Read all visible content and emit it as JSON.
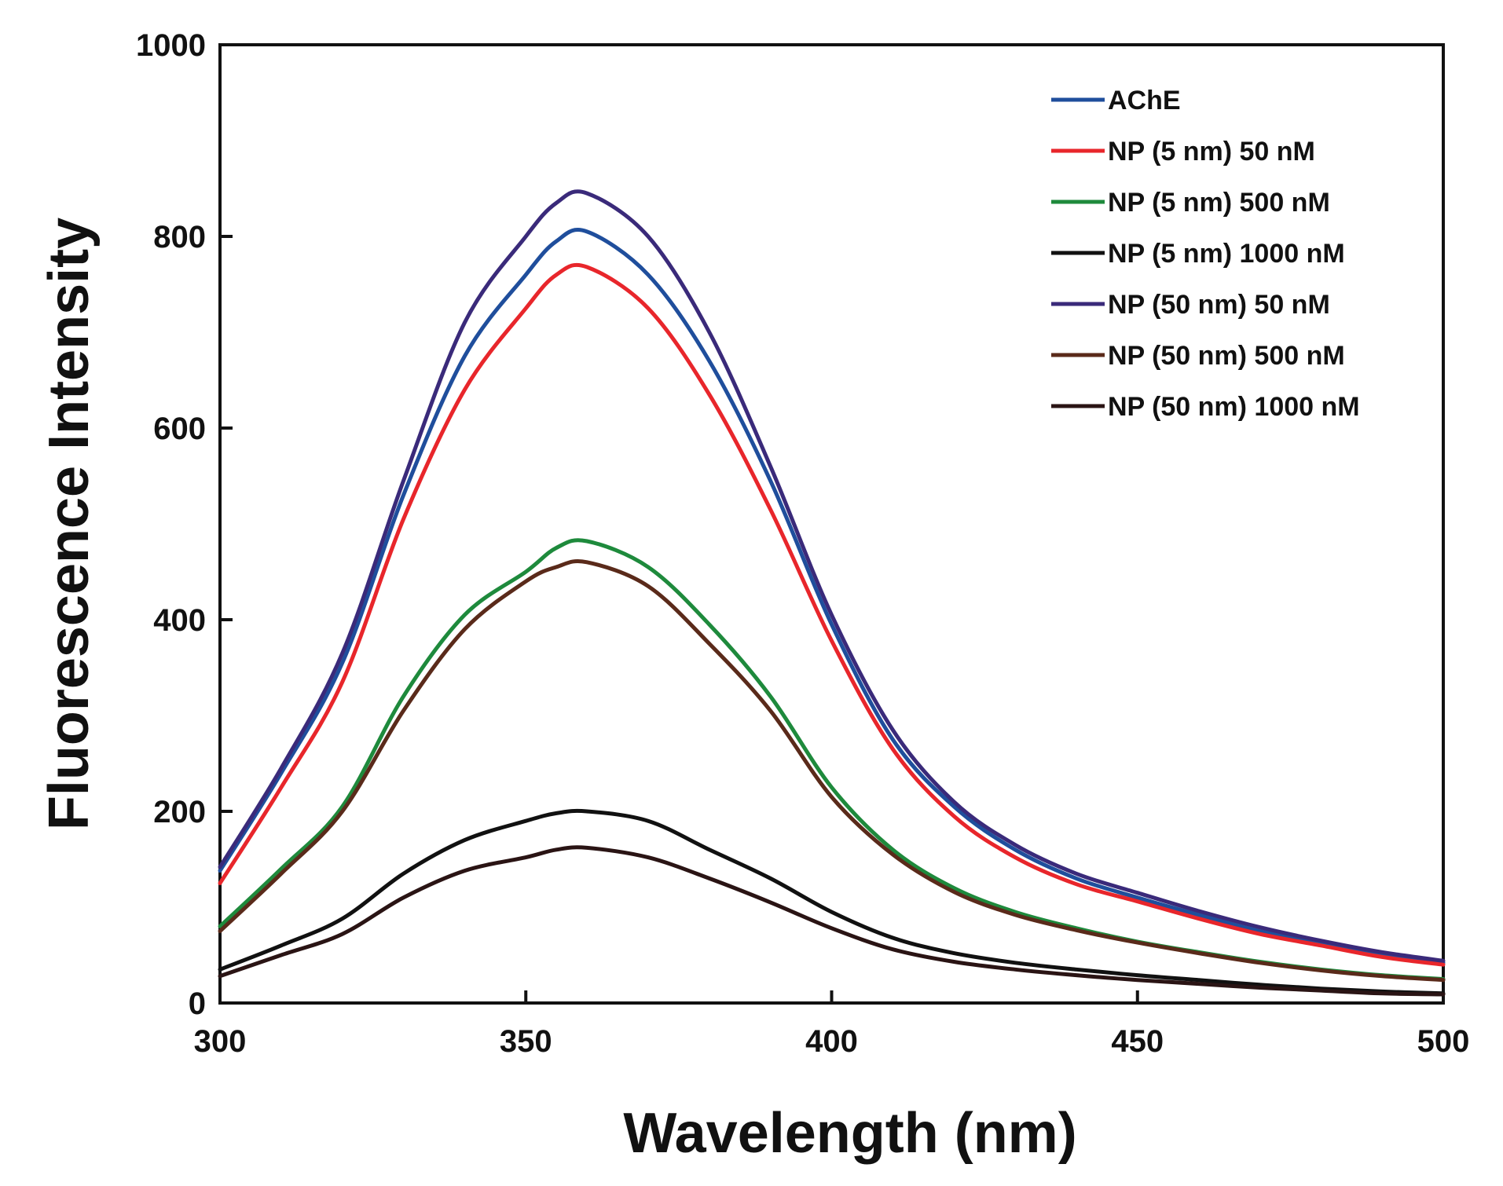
{
  "chart_data": {
    "type": "line",
    "title": "",
    "xlabel": "Wavelength (nm)",
    "ylabel": "Fluorescence Intensity",
    "xlim": [
      300,
      500
    ],
    "ylim": [
      0,
      1000
    ],
    "xticks": [
      300,
      350,
      400,
      450,
      500
    ],
    "yticks": [
      0,
      200,
      400,
      600,
      800,
      1000
    ],
    "grid": false,
    "legend_position": "top-right",
    "x": [
      300,
      310,
      320,
      330,
      340,
      350,
      355,
      360,
      370,
      380,
      390,
      400,
      410,
      420,
      430,
      440,
      450,
      460,
      470,
      480,
      490,
      500
    ],
    "series": [
      {
        "name": "AChE",
        "color": "#1f4e9c",
        "values": [
          138,
          240,
          355,
          530,
          675,
          760,
          795,
          805,
          760,
          670,
          545,
          395,
          275,
          205,
          160,
          130,
          110,
          92,
          75,
          62,
          50,
          42
        ]
      },
      {
        "name": "NP (5 nm) 50 nM",
        "color": "#e8262b",
        "values": [
          125,
          225,
          335,
          505,
          640,
          725,
          760,
          768,
          725,
          635,
          515,
          378,
          265,
          195,
          152,
          124,
          106,
          88,
          72,
          60,
          48,
          40
        ]
      },
      {
        "name": "NP (5 nm) 500 nM",
        "color": "#1e8a3c",
        "values": [
          80,
          140,
          205,
          320,
          405,
          450,
          475,
          482,
          455,
          395,
          320,
          225,
          160,
          120,
          95,
          78,
          64,
          53,
          43,
          35,
          29,
          25
        ]
      },
      {
        "name": "NP (5 nm) 1000 nM",
        "color": "#111111",
        "values": [
          35,
          60,
          88,
          135,
          170,
          190,
          198,
          200,
          190,
          160,
          130,
          95,
          68,
          52,
          42,
          35,
          29,
          24,
          19,
          15,
          12,
          10
        ]
      },
      {
        "name": "NP (50 nm) 50 nM",
        "color": "#3a2a7a",
        "values": [
          142,
          245,
          365,
          545,
          710,
          800,
          835,
          845,
          800,
          700,
          560,
          405,
          285,
          210,
          165,
          135,
          115,
          96,
          79,
          65,
          53,
          44
        ]
      },
      {
        "name": "NP (50 nm) 500 nM",
        "color": "#5a2a1a",
        "values": [
          75,
          135,
          200,
          305,
          390,
          440,
          455,
          460,
          435,
          375,
          305,
          215,
          155,
          116,
          92,
          76,
          63,
          52,
          42,
          34,
          28,
          24
        ]
      },
      {
        "name": "NP (50 nm) 1000 nM",
        "color": "#2a1414",
        "values": [
          28,
          50,
          72,
          110,
          138,
          152,
          160,
          162,
          152,
          130,
          105,
          78,
          56,
          43,
          35,
          29,
          24,
          20,
          16,
          13,
          10,
          9
        ]
      }
    ]
  }
}
